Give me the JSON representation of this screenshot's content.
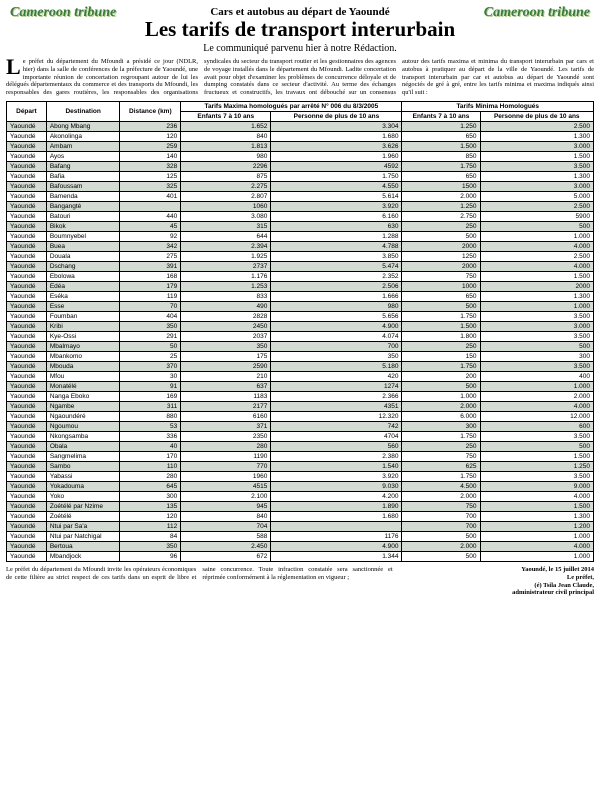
{
  "logo": "Cameroon tribune",
  "overtitle": "Cars et autobus au départ de Yaoundé",
  "title": "Les tarifs de transport interurbain",
  "subtitle": "Le communiqué parvenu hier à notre Rédaction.",
  "intro_text": "e préfet du département du Mfoundi a présidé ce jour (NDLR, hier) dans la salle de conférences de la préfecture de Yaoundé, une importante réunion de concertation regroupant autour de lui les délégués départementaux du commerce et des transports du Mfoundi, les responsables des gares routières, les responsables des organisations syndicales du secteur du transport routier et les gestionnaires des agences de voyage installés dans le département du Mfoundi. Ladite concertation avait pour objet d'examiner les problèmes de concurrence déloyale et de dumping constatés dans ce secteur d'activité. Au terme des échanges fructueux et constructifs, les travaux ont débouché sur un consensus autour des tarifs maxima et minima du transport interurbain par cars et autobus à pratiquer au départ de la ville de Yaoundé. Les tarifs de transport interurbain par car et autobus au départ de Yaoundé sont négociés de gré à gré, entre les tarifs minima et maxima indiqués ainsi qu'il suit :",
  "table": {
    "group_headers": {
      "max": "Tarifs Maxima homologués par arrêté N° 006 du 8/3/2005",
      "min": "Tarifs Minima Homologués"
    },
    "columns": {
      "depart": "Départ",
      "dest": "Destination",
      "dist": "Distance (km)",
      "child": "Enfants 7 à 10 ans",
      "adult": "Personne de plus de 10 ans"
    },
    "rows": [
      [
        "Yaoundé",
        "Abong Mbang",
        "236",
        "1.652",
        "3.304",
        "1.250",
        "2.500"
      ],
      [
        "Yaoundé",
        "Akonolinga",
        "120",
        "840",
        "1.680",
        "650",
        "1.300"
      ],
      [
        "Yaoundé",
        "Ambam",
        "259",
        "1.813",
        "3.626",
        "1.500",
        "3.000"
      ],
      [
        "Yaoundé",
        "Ayos",
        "140",
        "980",
        "1.960",
        "850",
        "1.500"
      ],
      [
        "Yaoundé",
        "Bafang",
        "328",
        "2296",
        "4592",
        "1.750",
        "3.500"
      ],
      [
        "Yaoundé",
        "Bafia",
        "125",
        "875",
        "1.750",
        "650",
        "1.300"
      ],
      [
        "Yaoundé",
        "Bafoussam",
        "325",
        "2.275",
        "4.550",
        "1500",
        "3.000"
      ],
      [
        "Yaoundé",
        "Bamenda",
        "401",
        "2.807",
        "5.614",
        "2.000",
        "5.000"
      ],
      [
        "Yaoundé",
        "Bangangté",
        "",
        "1060",
        "3.920",
        "1.250",
        "2.500"
      ],
      [
        "Yaoundé",
        "Batouri",
        "440",
        "3.080",
        "6.160",
        "2.750",
        "5900"
      ],
      [
        "Yaoundé",
        "Bikok",
        "45",
        "315",
        "630",
        "250",
        "500"
      ],
      [
        "Yaoundé",
        "Boumnyebel",
        "92",
        "644",
        "1.288",
        "500",
        "1.000"
      ],
      [
        "Yaoundé",
        "Buea",
        "342",
        "2.394",
        "4.788",
        "2000",
        "4.000"
      ],
      [
        "Yaoundé",
        "Douala",
        "275",
        "1.925",
        "3.850",
        "1250",
        "2.500"
      ],
      [
        "Yaoundé",
        "Dschang",
        "391",
        "2737",
        "5.474",
        "2000",
        "4.000"
      ],
      [
        "Yaoundé",
        "Ebolowa",
        "168",
        "1.176",
        "2.352",
        "750",
        "1.500"
      ],
      [
        "Yaoundé",
        "Edéa",
        "179",
        "1.253",
        "2.506",
        "1000",
        "2000"
      ],
      [
        "Yaoundé",
        "Eséka",
        "119",
        "833",
        "1.666",
        "650",
        "1.300"
      ],
      [
        "Yaoundé",
        "Esse",
        "70",
        "490",
        "980",
        "500",
        "1.000"
      ],
      [
        "Yaoundé",
        "Foumban",
        "404",
        "2828",
        "5.656",
        "1.750",
        "3.500"
      ],
      [
        "Yaoundé",
        "Kribi",
        "350",
        "2450",
        "4.900",
        "1.500",
        "3.000"
      ],
      [
        "Yaoundé",
        "Kye-Ossi",
        "291",
        "2037",
        "4.074",
        "1.800",
        "3.500"
      ],
      [
        "Yaoundé",
        "Mbalmayo",
        "50",
        "350",
        "700",
        "250",
        "500"
      ],
      [
        "Yaoundé",
        "Mbankomo",
        "25",
        "175",
        "350",
        "150",
        "300"
      ],
      [
        "Yaoundé",
        "Mbouda",
        "370",
        "2590",
        "5.180",
        "1.750",
        "3.500"
      ],
      [
        "Yaoundé",
        "Mfou",
        "30",
        "210",
        "420",
        "200",
        "400"
      ],
      [
        "Yaoundé",
        "Monatélé",
        "91",
        "637",
        "1274",
        "500",
        "1.000"
      ],
      [
        "Yaoundé",
        "Nanga Eboko",
        "169",
        "1183",
        "2.366",
        "1.000",
        "2.000"
      ],
      [
        "Yaoundé",
        "Ngambe",
        "311",
        "2177",
        "4351",
        "2.000",
        "4.000"
      ],
      [
        "Yaoundé",
        "Ngaoundéré",
        "880",
        "6160",
        "12.320",
        "6.000",
        "12.000"
      ],
      [
        "Yaoundé",
        "Ngoumou",
        "53",
        "371",
        "742",
        "300",
        "600"
      ],
      [
        "Yaoundé",
        "Nkongsamba",
        "336",
        "2350",
        "4704",
        "1.750",
        "3.500"
      ],
      [
        "Yaoundé",
        "Obala",
        "40",
        "280",
        "560",
        "250",
        "500"
      ],
      [
        "Yaoundé",
        "Sangmelima",
        "170",
        "1190",
        "2.380",
        "750",
        "1.500"
      ],
      [
        "Yaoundé",
        "Sambo",
        "110",
        "770",
        "1.540",
        "625",
        "1.250"
      ],
      [
        "Yaoundé",
        "Yabassi",
        "280",
        "1960",
        "3.920",
        "1.750",
        "3.500"
      ],
      [
        "Yaoundé",
        "Yokadouma",
        "645",
        "4515",
        "9.030",
        "4.500",
        "9.000"
      ],
      [
        "Yaoundé",
        "Yoko",
        "300",
        "2.100",
        "4.200",
        "2.000",
        "4.000"
      ],
      [
        "Yaoundé",
        "Zoétélé par Nzime",
        "135",
        "945",
        "1.890",
        "750",
        "1.500"
      ],
      [
        "Yaoundé",
        "Zoétélé",
        "120",
        "840",
        "1.680",
        "700",
        "1.300"
      ],
      [
        "Yaoundé",
        "Ntui par Sa'a",
        "112",
        "704",
        "",
        "700",
        "1.200"
      ],
      [
        "Yaoundé",
        "Ntui par Natchigal",
        "84",
        "588",
        "1176",
        "500",
        "1.000"
      ],
      [
        "Yaoundé",
        "Bertoua",
        "350",
        "2.450",
        "4.900",
        "2.000",
        "4.000"
      ],
      [
        "Yaoundé",
        "Mbandjock",
        "96",
        "672",
        "1.344",
        "500",
        "1.000"
      ]
    ]
  },
  "footer_left": "Le préfet du département du Mfoundi invite les opérateurs économiques de cette filière au strict respect de ces tarifs dans un esprit de libre et saine concurrence. Toute infraction constatée sera sanctionnée et réprimée conformément à la réglementation en vigueur ;",
  "footer_right": {
    "line1": "Yaoundé, le 15 juillet 2014",
    "line2": "Le préfet,",
    "line3": "(é) Tsila Jean Claude,",
    "line4": "administrateur civil principal"
  },
  "style": {
    "row_odd_bg": "#d3dbd2",
    "row_even_bg": "#ffffff"
  }
}
